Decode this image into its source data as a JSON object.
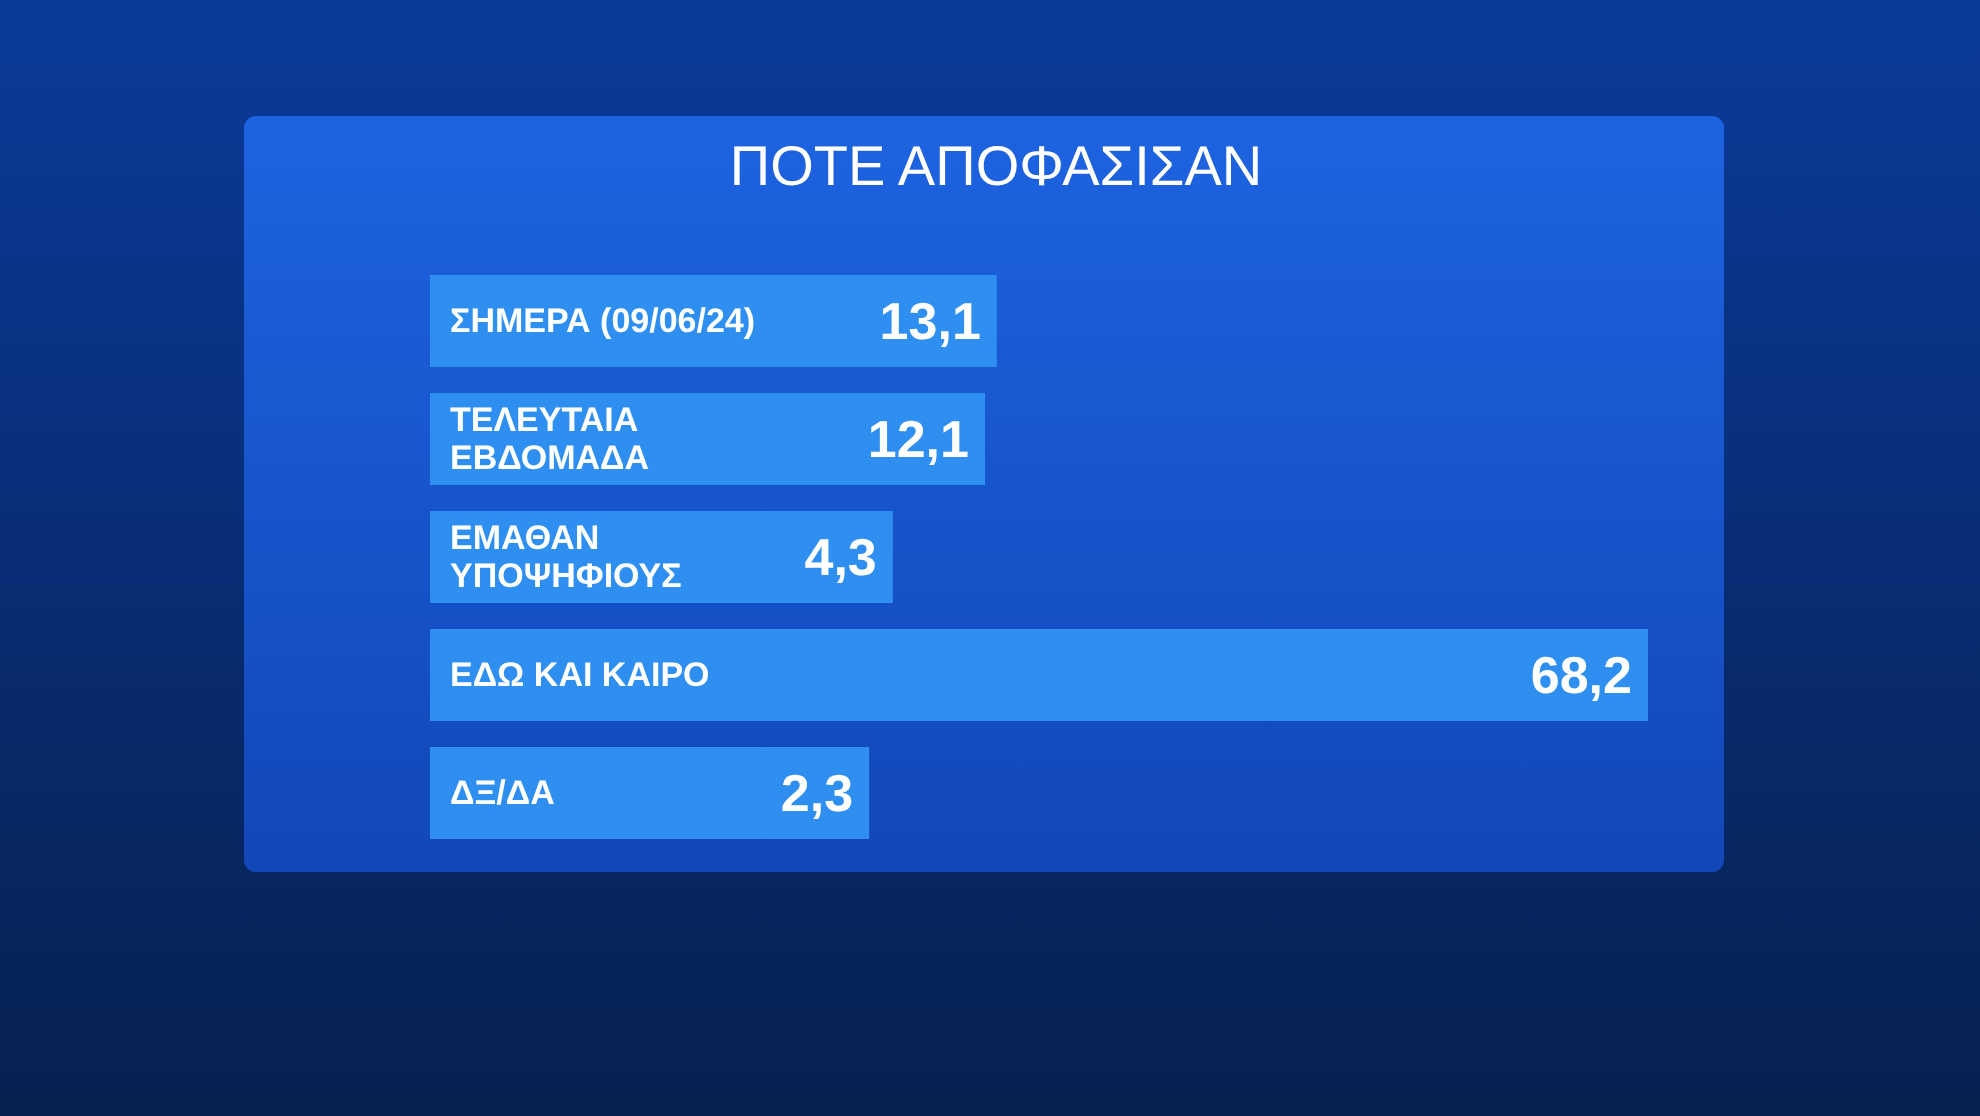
{
  "chart_data": {
    "type": "bar",
    "orientation": "horizontal",
    "title": "ΠΟΤΕ ΑΠΟΦΑΣΙΣΑΝ",
    "categories": [
      "ΣΗΜΕΡΑ (09/06/24)",
      "ΤΕΛΕΥΤΑΙΑ\nΕΒΔΟΜΑΔΑ",
      "ΕΜΑΘΑΝ\nΥΠΟΨΗΦΙΟΥΣ",
      "ΕΔΩ ΚΑΙ ΚΑΙΡΟ",
      "ΔΞ/ΔΑ"
    ],
    "values": [
      13.1,
      12.1,
      4.3,
      68.2,
      2.3
    ],
    "value_labels": [
      "13,1",
      "12,1",
      "4,3",
      "68,2",
      "2,3"
    ],
    "color": "#2e8ff0",
    "tick_labels": "y"
  }
}
